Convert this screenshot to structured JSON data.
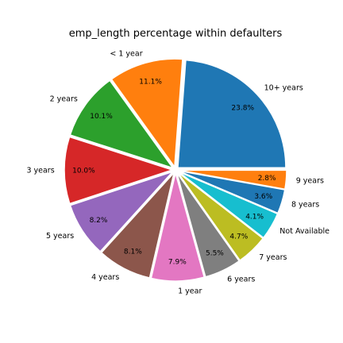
{
  "chart_data": {
    "type": "pie",
    "title": "emp_length percentage within defaulters",
    "slices": [
      {
        "label": "10+ years",
        "value": 23.8,
        "pct_label": "23.8%",
        "color": "#1f77b4"
      },
      {
        "label": "< 1 year",
        "value": 11.1,
        "pct_label": "11.1%",
        "color": "#ff7f0e"
      },
      {
        "label": "2 years",
        "value": 10.1,
        "pct_label": "10.1%",
        "color": "#2ca02c"
      },
      {
        "label": "3 years",
        "value": 10.0,
        "pct_label": "10.0%",
        "color": "#d62728"
      },
      {
        "label": "5 years",
        "value": 8.2,
        "pct_label": "8.2%",
        "color": "#9467bd"
      },
      {
        "label": "4 years",
        "value": 8.1,
        "pct_label": "8.1%",
        "color": "#8c564b"
      },
      {
        "label": "1 year",
        "value": 7.9,
        "pct_label": "7.9%",
        "color": "#e377c2"
      },
      {
        "label": "6 years",
        "value": 5.5,
        "pct_label": "5.5%",
        "color": "#7f7f7f"
      },
      {
        "label": "7 years",
        "value": 4.7,
        "pct_label": "4.7%",
        "color": "#bcbd22"
      },
      {
        "label": "Not Available",
        "value": 4.1,
        "pct_label": "4.1%",
        "color": "#17becf"
      },
      {
        "label": "8 years",
        "value": 3.6,
        "pct_label": "3.6%",
        "color": "#1f77b4"
      },
      {
        "label": "9 years",
        "value": 2.8,
        "pct_label": "2.8%",
        "color": "#ff7f0e"
      }
    ]
  }
}
